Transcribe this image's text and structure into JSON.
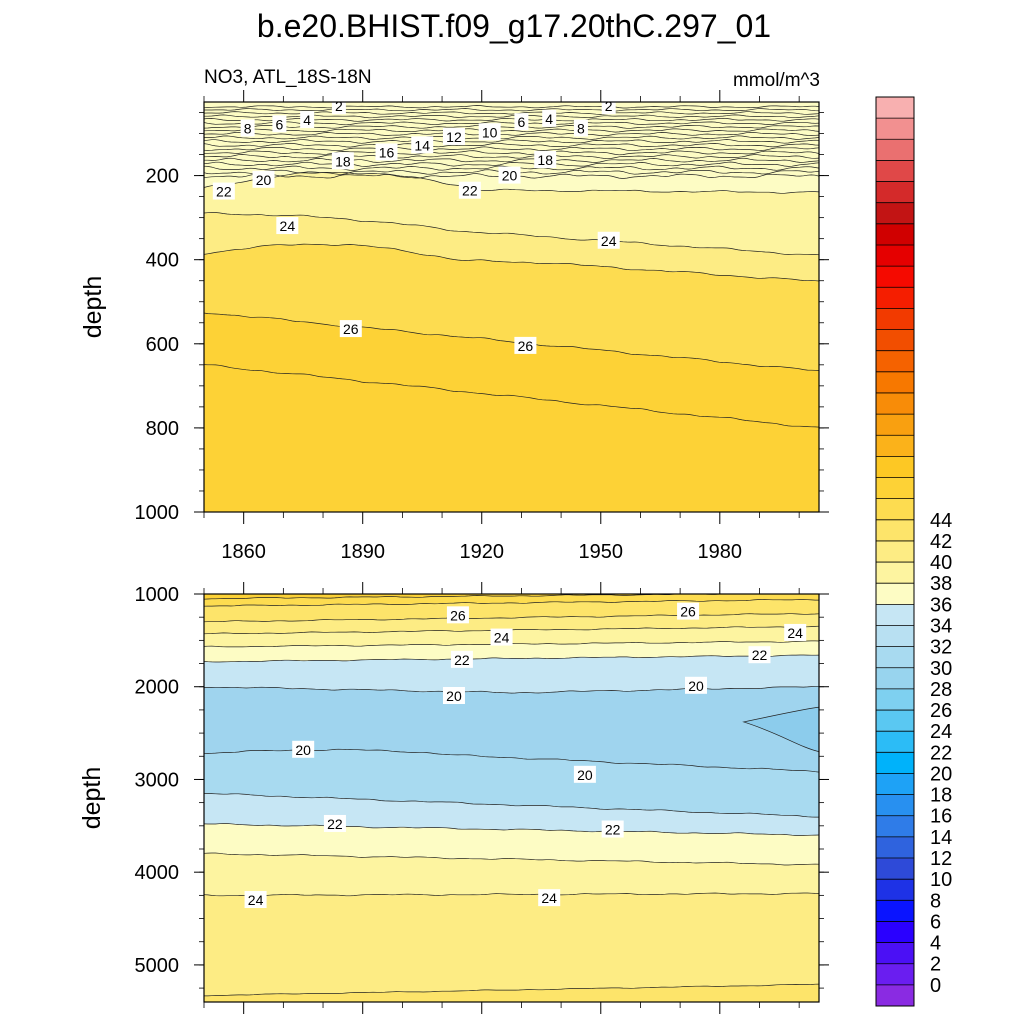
{
  "title": "b.e20.BHIST.f09_g17.20thC.297_01",
  "subtitle_left": "NO3, ATL_18S-18N",
  "units": "mmol/m^3",
  "colorbar": {
    "levels": [
      0,
      2,
      4,
      6,
      8,
      10,
      12,
      14,
      16,
      18,
      20,
      22,
      24,
      26,
      28,
      30,
      32,
      34,
      36,
      38,
      40,
      42,
      44
    ],
    "tick_labels": [
      "0",
      "2",
      "4",
      "6",
      "8",
      "10",
      "12",
      "14",
      "16",
      "18",
      "20",
      "22",
      "24",
      "26",
      "28",
      "30",
      "32",
      "34",
      "36",
      "38",
      "40",
      "42",
      "44"
    ],
    "colors": [
      "#8a2be2",
      "#6a1ef0",
      "#4b10f5",
      "#2a00ff",
      "#0a14ff",
      "#1e32e6",
      "#2e4ad8",
      "#2f63de",
      "#2f7ce8",
      "#2890f0",
      "#1ea2f6",
      "#00b2fa",
      "#2cbcf6",
      "#5ac8f2",
      "#7ed0f0",
      "#98d4ee",
      "#a8daf0",
      "#b8e0f2",
      "#c6e6f4",
      "#fdfcc4",
      "#fdf4a0",
      "#fdec84",
      "#fde46a",
      "#fddc50",
      "#fdd236",
      "#fdc824",
      "#fbb21a",
      "#f9a010",
      "#f88c08",
      "#f77800",
      "#f56200",
      "#f24e00",
      "#f23a00",
      "#f51e00",
      "#f50a00",
      "#e50000",
      "#d00000",
      "#c21414",
      "#d42a2a",
      "#e04848",
      "#ea7070",
      "#f29090",
      "#f8b0b0"
    ]
  },
  "chart_data": [
    {
      "type": "heatmap",
      "panel": "upper",
      "variable": "NO3",
      "region": "ATL_18S-18N",
      "units": "mmol/m^3",
      "x_ticks": [
        1860,
        1890,
        1920,
        1950,
        1980
      ],
      "x_tick_labels": [
        "1860",
        "1890",
        "1920",
        "1950",
        "1980"
      ],
      "xlim": [
        1850,
        2005
      ],
      "ylabel": "depth",
      "ylim": [
        0,
        1000
      ],
      "y_ticks": [
        200,
        400,
        600,
        800,
        1000
      ],
      "y_tick_labels": [
        "200",
        "400",
        "600",
        "800",
        "1000"
      ],
      "y_reversed": true,
      "contour_labels": [
        {
          "year": 1884,
          "depth": 35,
          "value": "2"
        },
        {
          "year": 1952,
          "depth": 35,
          "value": "2"
        },
        {
          "year": 1861,
          "depth": 88,
          "value": "8"
        },
        {
          "year": 1869,
          "depth": 78,
          "value": "6"
        },
        {
          "year": 1876,
          "depth": 68,
          "value": "4"
        },
        {
          "year": 1930,
          "depth": 73,
          "value": "6"
        },
        {
          "year": 1937,
          "depth": 65,
          "value": "4"
        },
        {
          "year": 1945,
          "depth": 88,
          "value": "8"
        },
        {
          "year": 1922,
          "depth": 97,
          "value": "10"
        },
        {
          "year": 1913,
          "depth": 108,
          "value": "12"
        },
        {
          "year": 1905,
          "depth": 128,
          "value": "14"
        },
        {
          "year": 1896,
          "depth": 145,
          "value": "16"
        },
        {
          "year": 1885,
          "depth": 166,
          "value": "18"
        },
        {
          "year": 1936,
          "depth": 163,
          "value": "18"
        },
        {
          "year": 1865,
          "depth": 210,
          "value": "20"
        },
        {
          "year": 1927,
          "depth": 200,
          "value": "20"
        },
        {
          "year": 1855,
          "depth": 238,
          "value": "22"
        },
        {
          "year": 1917,
          "depth": 236,
          "value": "22"
        },
        {
          "year": 1871,
          "depth": 320,
          "value": "24"
        },
        {
          "year": 1952,
          "depth": 355,
          "value": "24"
        },
        {
          "year": 1887,
          "depth": 565,
          "value": "26"
        },
        {
          "year": 1931,
          "depth": 605,
          "value": "26"
        }
      ]
    },
    {
      "type": "heatmap",
      "panel": "lower",
      "variable": "NO3",
      "region": "ATL_18S-18N",
      "units": "mmol/m^3",
      "xlim": [
        1850,
        2005
      ],
      "ylabel": "depth",
      "ylim": [
        1000,
        5400
      ],
      "y_ticks": [
        1000,
        2000,
        3000,
        4000,
        5000
      ],
      "y_tick_labels": [
        "1000",
        "2000",
        "3000",
        "4000",
        "5000"
      ],
      "y_reversed": true,
      "contour_labels": [
        {
          "year": 1914,
          "depth": 1230,
          "value": "26"
        },
        {
          "year": 1972,
          "depth": 1190,
          "value": "26"
        },
        {
          "year": 1925,
          "depth": 1470,
          "value": "24"
        },
        {
          "year": 1999,
          "depth": 1420,
          "value": "24"
        },
        {
          "year": 1915,
          "depth": 1710,
          "value": "22"
        },
        {
          "year": 1990,
          "depth": 1660,
          "value": "22"
        },
        {
          "year": 1913,
          "depth": 2100,
          "value": "20"
        },
        {
          "year": 1974,
          "depth": 1990,
          "value": "20"
        },
        {
          "year": 1875,
          "depth": 2680,
          "value": "20"
        },
        {
          "year": 1946,
          "depth": 2950,
          "value": "20"
        },
        {
          "year": 1883,
          "depth": 3480,
          "value": "22"
        },
        {
          "year": 1953,
          "depth": 3540,
          "value": "22"
        },
        {
          "year": 1863,
          "depth": 4300,
          "value": "24"
        },
        {
          "year": 1937,
          "depth": 4280,
          "value": "24"
        }
      ]
    }
  ]
}
